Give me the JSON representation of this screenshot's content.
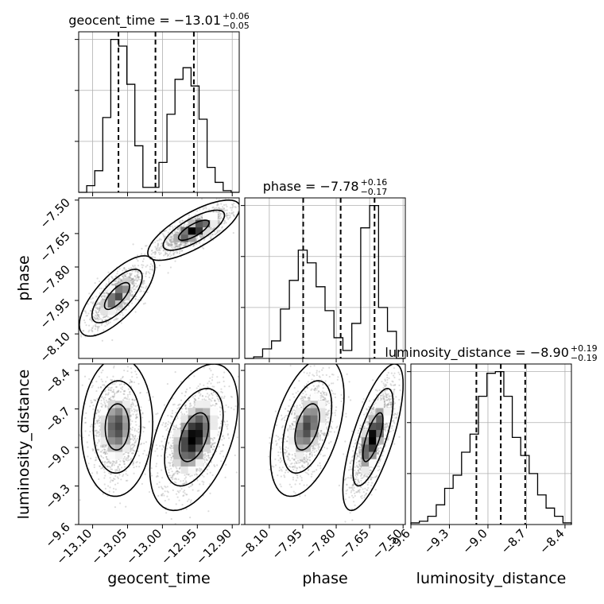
{
  "chart_data": {
    "type": "corner",
    "parameters": [
      "geocent_time",
      "phase",
      "luminosity_distance"
    ],
    "titles": [
      {
        "name": "geocent_time",
        "median": "−13.01",
        "plus": "+0.06",
        "minus": "−0.05"
      },
      {
        "name": "phase",
        "median": "−7.78",
        "plus": "+0.16",
        "minus": "−0.17"
      },
      {
        "name": "luminosity_distance",
        "median": "−8.90",
        "plus": "+0.19",
        "minus": "−0.19"
      }
    ],
    "axes": {
      "geocent_time": {
        "range": [
          -13.12,
          -12.89
        ],
        "ticks": [
          -13.1,
          -13.05,
          -13.0,
          -12.95,
          -12.9
        ],
        "tick_labels": [
          "−13.10",
          "−13.05",
          "−13.00",
          "−12.95",
          "−12.90"
        ]
      },
      "phase": {
        "range": [
          -8.21,
          -7.49
        ],
        "ticks": [
          -8.1,
          -7.95,
          -7.8,
          -7.65,
          -7.5
        ],
        "tick_labels": [
          "−8.10",
          "−7.95",
          "−7.80",
          "−7.65",
          "−7.50"
        ]
      },
      "luminosity_distance": {
        "range": [
          -9.6,
          -8.35
        ],
        "ticks": [
          -9.6,
          -9.3,
          -9.0,
          -8.7,
          -8.4
        ],
        "tick_labels": [
          "−9.6",
          "−9.3",
          "−9.0",
          "−8.7",
          "−8.4"
        ]
      }
    },
    "histograms": [
      {
        "param": "geocent_time",
        "counts": [
          0,
          4,
          13,
          45,
          92,
          88,
          65,
          28,
          3,
          3,
          18,
          47,
          68,
          75,
          64,
          44,
          15,
          6,
          1,
          0
        ],
        "quantiles": [
          -13.063,
          -13.01,
          -12.955
        ]
      },
      {
        "param": "phase",
        "counts": [
          0,
          1,
          6,
          11,
          31,
          49,
          68,
          60,
          45,
          30,
          13,
          5,
          22,
          82,
          96,
          32,
          17,
          0
        ],
        "quantiles": [
          -7.948,
          -7.78,
          -7.628
        ]
      },
      {
        "param": "luminosity_distance",
        "counts": [
          1,
          2,
          5,
          12,
          22,
          30,
          44,
          55,
          78,
          92,
          93,
          78,
          53,
          42,
          31,
          18,
          10,
          5,
          1
        ],
        "quantiles": [
          -9.09,
          -8.9,
          -8.71
        ]
      }
    ],
    "pairs": [
      {
        "x": "geocent_time",
        "y": "phase",
        "modes": [
          {
            "cx": -13.065,
            "cy": -7.93,
            "sx": 0.018,
            "sy": 0.06,
            "rho": 0.72,
            "w": 0.45
          },
          {
            "cx": -12.955,
            "cy": -7.635,
            "sx": 0.022,
            "sy": 0.045,
            "rho": 0.75,
            "w": 0.55
          }
        ]
      },
      {
        "x": "geocent_time",
        "y": "luminosity_distance",
        "modes": [
          {
            "cx": -13.065,
            "cy": -8.84,
            "sx": 0.017,
            "sy": 0.18,
            "rho": 0.05,
            "w": 0.45
          },
          {
            "cx": -12.955,
            "cy": -8.92,
            "sx": 0.021,
            "sy": 0.19,
            "rho": 0.45,
            "w": 0.55
          }
        ]
      },
      {
        "x": "phase",
        "y": "luminosity_distance",
        "modes": [
          {
            "cx": -7.93,
            "cy": -8.84,
            "sx": 0.055,
            "sy": 0.18,
            "rho": 0.45,
            "w": 0.45
          },
          {
            "cx": -7.635,
            "cy": -8.92,
            "sx": 0.045,
            "sy": 0.19,
            "rho": 0.72,
            "w": 0.55
          }
        ]
      }
    ],
    "grid": true,
    "colors": {
      "line": "#000000",
      "grid": "#b0b0b0",
      "sample_points": "#9a9a9a"
    }
  }
}
